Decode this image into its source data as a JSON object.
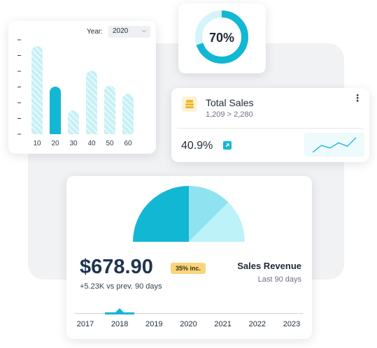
{
  "bar_chart": {
    "year_label": "Year:",
    "year_value": "2020",
    "chart_data": {
      "type": "bar",
      "categories": [
        "10",
        "20",
        "30",
        "40",
        "50",
        "60"
      ],
      "values": [
        100,
        54,
        27,
        72,
        55,
        46
      ],
      "ylim": [
        0,
        100
      ],
      "highlighted_category": "20",
      "colors": {
        "highlight": "#12b7d4",
        "bar": "#c6f0f6",
        "hatch": "#ffffff"
      }
    }
  },
  "donut": {
    "label": "70%",
    "value": 70,
    "colors": {
      "fill": "#12b7d4",
      "track": "#d4f4fa"
    }
  },
  "total_sales": {
    "icon": "cash-register-icon",
    "title": "Total Sales",
    "subtitle": "1,209 > 2,280",
    "percent": "40.9%",
    "trend_icon": "arrow-up-right-icon",
    "sparkline": [
      3,
      11,
      8,
      14,
      10,
      20
    ],
    "colors": {
      "accent": "#12b7d4",
      "icon_bg": "#fdf3d6",
      "icon": "#f2b429"
    }
  },
  "revenue": {
    "value": "$678.90",
    "badge": "35% inc.",
    "compare": "+5.23K vs prev. 90 days",
    "title": "Sales Revenue",
    "period": "Last 90 days",
    "pie": [
      {
        "value": 50,
        "color": "#12b7d4"
      },
      {
        "value": 25,
        "color": "#8fe3f0"
      },
      {
        "value": 25,
        "color": "#bdf2f9"
      }
    ],
    "years": [
      "2017",
      "2018",
      "2019",
      "2020",
      "2021",
      "2022",
      "2023"
    ],
    "selected_year": "2018"
  }
}
